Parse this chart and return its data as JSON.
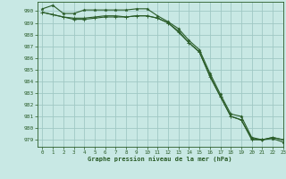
{
  "title": "Graphe pression niveau de la mer (hPa)",
  "background_color": "#c8e8e4",
  "grid_color": "#a0c8c4",
  "line_color": "#2a5c28",
  "xlim": [
    -0.5,
    23
  ],
  "ylim": [
    978.4,
    990.8
  ],
  "yticks": [
    979,
    980,
    981,
    982,
    983,
    984,
    985,
    986,
    987,
    988,
    989,
    990
  ],
  "xticks": [
    0,
    1,
    2,
    3,
    4,
    5,
    6,
    7,
    8,
    9,
    10,
    11,
    12,
    13,
    14,
    15,
    16,
    17,
    18,
    19,
    20,
    21,
    22,
    23
  ],
  "line1_x": [
    0,
    1,
    2,
    3,
    4,
    5,
    6,
    7,
    8,
    9,
    10,
    11,
    12,
    13,
    14,
    15,
    16,
    17,
    18,
    19,
    20,
    21,
    22,
    23
  ],
  "line1_y": [
    990.2,
    990.5,
    989.8,
    989.8,
    990.1,
    990.1,
    990.1,
    990.1,
    990.1,
    990.2,
    990.2,
    989.6,
    989.1,
    988.5,
    987.5,
    986.7,
    984.7,
    982.9,
    981.2,
    981.0,
    979.2,
    979.0,
    979.1,
    978.8
  ],
  "line2_x": [
    0,
    1,
    2,
    3,
    4,
    5,
    6,
    7,
    8,
    9,
    10,
    11,
    12,
    13,
    14,
    15,
    16,
    17,
    18,
    19,
    20,
    21,
    22,
    23
  ],
  "line2_y": [
    989.9,
    989.7,
    989.5,
    989.4,
    989.4,
    989.5,
    989.6,
    989.6,
    989.5,
    989.6,
    989.6,
    989.4,
    989.0,
    988.3,
    987.3,
    986.5,
    984.5,
    982.7,
    981.0,
    980.7,
    979.0,
    979.0,
    979.2,
    979.0
  ],
  "line3_x": [
    0,
    1,
    2,
    3,
    4,
    5,
    6,
    7,
    8,
    9,
    10,
    11,
    12,
    13,
    14,
    15,
    16,
    17,
    18,
    19,
    20,
    21,
    22,
    23
  ],
  "line3_y": [
    989.9,
    989.7,
    989.5,
    989.3,
    989.3,
    989.4,
    989.5,
    989.5,
    989.5,
    989.6,
    989.6,
    989.4,
    989.0,
    988.2,
    987.3,
    986.5,
    984.4,
    982.7,
    981.0,
    980.7,
    979.1,
    979.0,
    979.2,
    979.0
  ]
}
